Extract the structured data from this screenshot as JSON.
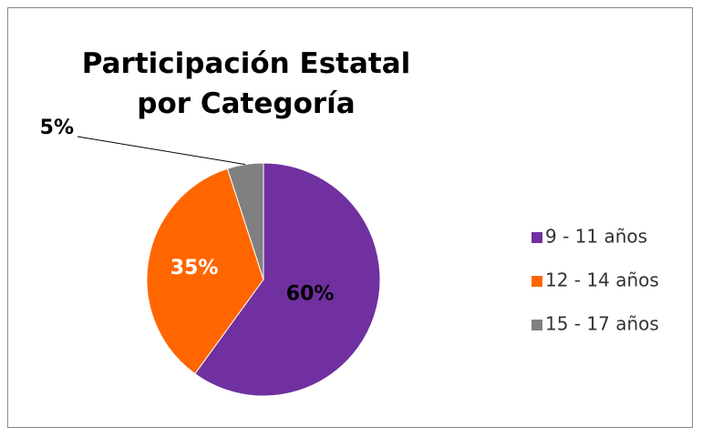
{
  "chart_data": {
    "type": "pie",
    "title": "Participación Estatal por Categoría",
    "categories": [
      "9 - 11 años",
      "12 - 14 años",
      "15 - 17 años"
    ],
    "values": [
      60,
      35,
      5
    ],
    "value_labels": [
      "60%",
      "35%",
      "5%"
    ],
    "colors": [
      "#7030a0",
      "#ff6600",
      "#808080"
    ],
    "legend": "right"
  }
}
